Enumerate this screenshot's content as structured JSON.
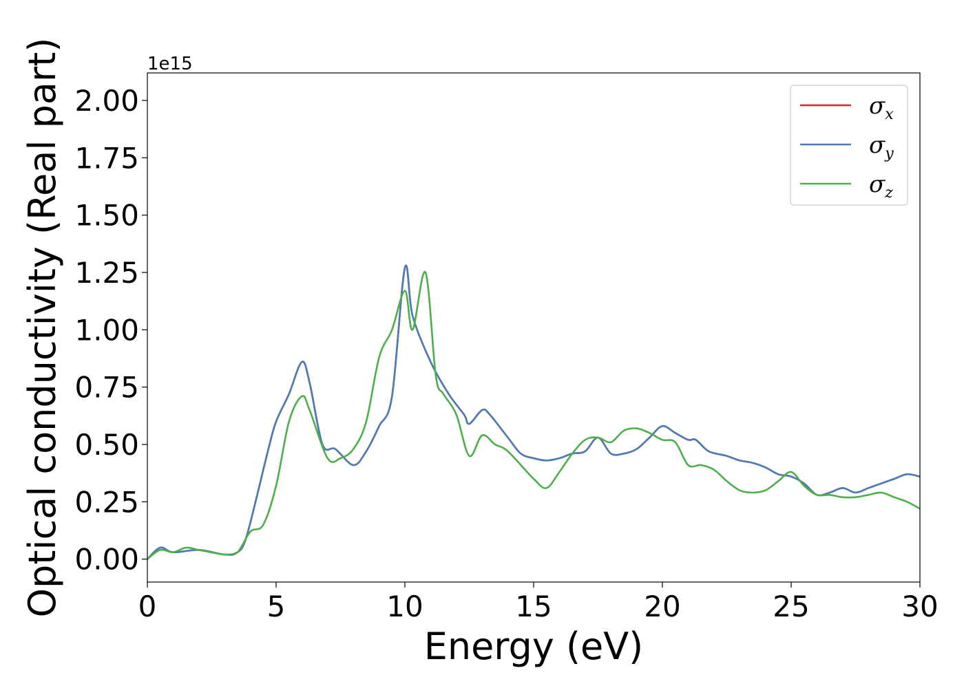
{
  "chart_data": {
    "type": "line",
    "xlabel": "Energy (eV)",
    "ylabel": "Optical conductivity (Real part)",
    "y_offset_label": "1e15",
    "xlim": [
      0,
      30
    ],
    "ylim": [
      -0.1,
      2.12
    ],
    "xticks": [
      0,
      5,
      10,
      15,
      20,
      25,
      30
    ],
    "xtick_labels": [
      "0",
      "5",
      "10",
      "15",
      "20",
      "25",
      "30"
    ],
    "yticks": [
      0.0,
      0.25,
      0.5,
      0.75,
      1.0,
      1.25,
      1.5,
      1.75,
      2.0
    ],
    "ytick_labels": [
      "0.00",
      "0.25",
      "0.50",
      "0.75",
      "1.00",
      "1.25",
      "1.50",
      "1.75",
      "2.00"
    ],
    "grid": false,
    "legend_position": "top-right",
    "series": [
      {
        "name": "σx",
        "symbol": "σ",
        "subscript": "x",
        "color": "#d62728",
        "x": [
          0,
          0.5,
          1,
          2,
          3,
          3.5,
          3.8,
          4.2,
          4.7,
          5,
          5.5,
          6,
          6.3,
          6.8,
          7.3,
          8,
          8.5,
          9,
          9.5,
          10,
          10.3,
          11,
          11.7,
          12.3,
          12.5,
          13,
          13.3,
          14,
          14.5,
          15,
          15.5,
          16,
          16.5,
          17,
          17.5,
          18,
          18.5,
          19,
          19.5,
          20,
          20.5,
          21,
          21.3,
          21.8,
          22.5,
          23,
          23.5,
          24,
          24.5,
          25,
          25.5,
          26,
          26.5,
          27,
          27.5,
          28,
          28.5,
          29,
          29.5,
          30
        ],
        "y": [
          0.0,
          0.05,
          0.03,
          0.04,
          0.02,
          0.03,
          0.08,
          0.25,
          0.48,
          0.6,
          0.72,
          0.86,
          0.77,
          0.5,
          0.48,
          0.41,
          0.47,
          0.58,
          0.71,
          1.27,
          1.06,
          0.86,
          0.72,
          0.63,
          0.59,
          0.65,
          0.63,
          0.53,
          0.46,
          0.44,
          0.43,
          0.44,
          0.46,
          0.47,
          0.53,
          0.46,
          0.46,
          0.48,
          0.53,
          0.58,
          0.55,
          0.52,
          0.52,
          0.47,
          0.45,
          0.43,
          0.42,
          0.4,
          0.37,
          0.36,
          0.33,
          0.28,
          0.29,
          0.31,
          0.29,
          0.31,
          0.33,
          0.35,
          0.37,
          0.36
        ]
      },
      {
        "name": "σy",
        "symbol": "σ",
        "subscript": "y",
        "color": "#4a7db8",
        "x": [
          0,
          0.5,
          1,
          2,
          3,
          3.5,
          3.8,
          4.2,
          4.7,
          5,
          5.5,
          6,
          6.3,
          6.8,
          7.3,
          8,
          8.5,
          9,
          9.5,
          10,
          10.3,
          11,
          11.7,
          12.3,
          12.5,
          13,
          13.3,
          14,
          14.5,
          15,
          15.5,
          16,
          16.5,
          17,
          17.5,
          18,
          18.5,
          19,
          19.5,
          20,
          20.5,
          21,
          21.3,
          21.8,
          22.5,
          23,
          23.5,
          24,
          24.5,
          25,
          25.5,
          26,
          26.5,
          27,
          27.5,
          28,
          28.5,
          29,
          29.5,
          30
        ],
        "y": [
          0.0,
          0.05,
          0.03,
          0.04,
          0.02,
          0.03,
          0.08,
          0.25,
          0.48,
          0.6,
          0.72,
          0.86,
          0.77,
          0.5,
          0.48,
          0.41,
          0.47,
          0.58,
          0.71,
          1.27,
          1.06,
          0.86,
          0.72,
          0.63,
          0.59,
          0.65,
          0.63,
          0.53,
          0.46,
          0.44,
          0.43,
          0.44,
          0.46,
          0.47,
          0.53,
          0.46,
          0.46,
          0.48,
          0.53,
          0.58,
          0.55,
          0.52,
          0.52,
          0.47,
          0.45,
          0.43,
          0.42,
          0.4,
          0.37,
          0.36,
          0.33,
          0.28,
          0.29,
          0.31,
          0.29,
          0.31,
          0.33,
          0.35,
          0.37,
          0.36
        ]
      },
      {
        "name": "σz",
        "symbol": "σ",
        "subscript": "z",
        "color": "#4daf4a",
        "x": [
          0,
          0.5,
          1,
          1.5,
          2,
          3,
          3.5,
          4,
          4.5,
          5,
          5.5,
          6,
          6.3,
          7,
          7.5,
          8,
          8.5,
          9,
          9.5,
          10,
          10.3,
          10.8,
          11.2,
          11.5,
          12,
          12.5,
          13,
          13.5,
          14,
          15,
          15.5,
          16,
          16.5,
          17,
          17.5,
          18,
          18.5,
          19,
          19.5,
          20,
          20.5,
          21,
          21.5,
          22,
          22.5,
          23,
          23.5,
          24,
          24.5,
          25,
          25.5,
          26,
          26.5,
          27,
          27.5,
          28,
          28.5,
          29,
          29.5,
          30
        ],
        "y": [
          0.0,
          0.04,
          0.03,
          0.05,
          0.04,
          0.02,
          0.03,
          0.12,
          0.15,
          0.32,
          0.6,
          0.71,
          0.65,
          0.44,
          0.44,
          0.48,
          0.6,
          0.88,
          1.0,
          1.17,
          1.0,
          1.25,
          0.8,
          0.72,
          0.63,
          0.45,
          0.54,
          0.5,
          0.47,
          0.35,
          0.31,
          0.38,
          0.46,
          0.52,
          0.53,
          0.51,
          0.56,
          0.57,
          0.55,
          0.52,
          0.51,
          0.41,
          0.41,
          0.39,
          0.34,
          0.3,
          0.29,
          0.3,
          0.34,
          0.38,
          0.32,
          0.28,
          0.28,
          0.27,
          0.27,
          0.28,
          0.29,
          0.27,
          0.25,
          0.22
        ]
      }
    ]
  }
}
